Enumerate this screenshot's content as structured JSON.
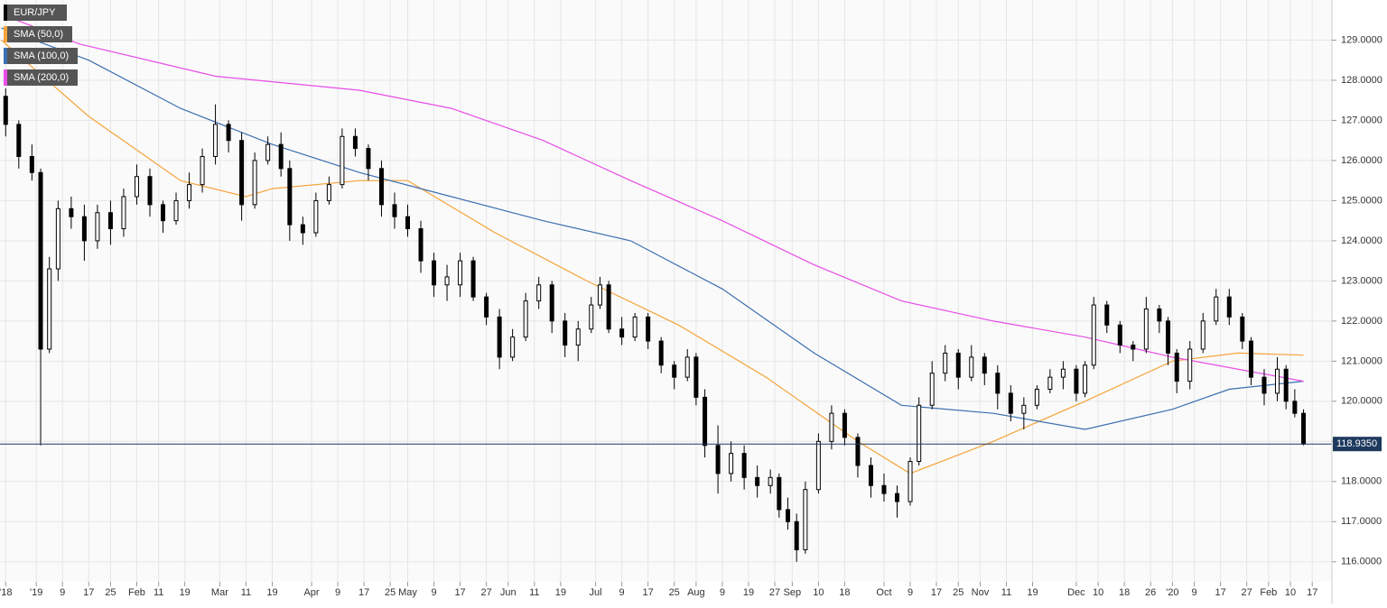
{
  "chart_data": {
    "type": "candlestick",
    "symbol": "EUR/JPY",
    "symbol_color": "#000000",
    "up_color": "#ffffff",
    "down_color": "#000000",
    "xlim": [
      -8.3,
      296.5
    ],
    "xticks": [
      {
        "value": -7,
        "label": "'18"
      },
      {
        "value": 0,
        "label": "'19"
      },
      {
        "value": 6,
        "label": "9"
      },
      {
        "value": 12,
        "label": "17"
      },
      {
        "value": 17,
        "label": "25"
      },
      {
        "value": 23,
        "label": "Feb"
      },
      {
        "value": 28,
        "label": "11"
      },
      {
        "value": 34,
        "label": "19"
      },
      {
        "value": 42,
        "label": "Mar"
      },
      {
        "value": 48,
        "label": "11"
      },
      {
        "value": 54,
        "label": "19"
      },
      {
        "value": 63,
        "label": "Apr"
      },
      {
        "value": 69,
        "label": "9"
      },
      {
        "value": 75,
        "label": "17"
      },
      {
        "value": 81,
        "label": "25"
      },
      {
        "value": 85,
        "label": "May"
      },
      {
        "value": 91,
        "label": "9"
      },
      {
        "value": 97,
        "label": "17"
      },
      {
        "value": 103,
        "label": "27"
      },
      {
        "value": 108,
        "label": "Jun"
      },
      {
        "value": 114,
        "label": "11"
      },
      {
        "value": 120,
        "label": "19"
      },
      {
        "value": 128,
        "label": "Jul"
      },
      {
        "value": 134,
        "label": "9"
      },
      {
        "value": 140,
        "label": "17"
      },
      {
        "value": 146,
        "label": "25"
      },
      {
        "value": 151,
        "label": "Aug"
      },
      {
        "value": 157,
        "label": "9"
      },
      {
        "value": 163,
        "label": "19"
      },
      {
        "value": 169,
        "label": "27"
      },
      {
        "value": 173,
        "label": "Sep"
      },
      {
        "value": 179,
        "label": "10"
      },
      {
        "value": 185,
        "label": "18"
      },
      {
        "value": 194,
        "label": "Oct"
      },
      {
        "value": 200,
        "label": "9"
      },
      {
        "value": 206,
        "label": "17"
      },
      {
        "value": 211,
        "label": "25"
      },
      {
        "value": 216,
        "label": "Nov"
      },
      {
        "value": 222,
        "label": "11"
      },
      {
        "value": 228,
        "label": "19"
      },
      {
        "value": 238,
        "label": "Dec"
      },
      {
        "value": 243,
        "label": "10"
      },
      {
        "value": 249,
        "label": "18"
      },
      {
        "value": 255,
        "label": "26"
      },
      {
        "value": 260,
        "label": "'20"
      },
      {
        "value": 265,
        "label": "9"
      },
      {
        "value": 271,
        "label": "17"
      },
      {
        "value": 277,
        "label": "27"
      },
      {
        "value": 282,
        "label": "Feb"
      },
      {
        "value": 287,
        "label": "10"
      },
      {
        "value": 292,
        "label": "17"
      }
    ],
    "ylim": [
      115.5,
      130.0
    ],
    "yticks": [
      {
        "value": 116,
        "label": "116.0000"
      },
      {
        "value": 117,
        "label": "117.0000"
      },
      {
        "value": 118,
        "label": "118.0000"
      },
      {
        "value": 119,
        "label": "119.0000"
      },
      {
        "value": 120,
        "label": "120.0000"
      },
      {
        "value": 121,
        "label": "121.0000"
      },
      {
        "value": 122,
        "label": "122.0000"
      },
      {
        "value": 123,
        "label": "123.0000"
      },
      {
        "value": 124,
        "label": "124.0000"
      },
      {
        "value": 125,
        "label": "125.0000"
      },
      {
        "value": 126,
        "label": "126.0000"
      },
      {
        "value": 127,
        "label": "127.0000"
      },
      {
        "value": 128,
        "label": "128.0000"
      },
      {
        "value": 129,
        "label": "129.0000"
      }
    ],
    "grid": true,
    "last_price": {
      "value": 118.935,
      "label": "118.9350"
    },
    "candles": [
      {
        "x": -7,
        "open": 127.6,
        "high": 127.8,
        "low": 126.6,
        "close": 126.9
      },
      {
        "x": -4,
        "open": 126.9,
        "high": 127.0,
        "low": 125.8,
        "close": 126.1
      },
      {
        "x": -1,
        "open": 126.1,
        "high": 126.4,
        "low": 125.5,
        "close": 125.7
      },
      {
        "x": 1,
        "open": 125.7,
        "high": 125.8,
        "low": 118.9,
        "close": 121.3
      },
      {
        "x": 3,
        "open": 121.3,
        "high": 123.6,
        "low": 121.2,
        "close": 123.3
      },
      {
        "x": 5,
        "open": 123.3,
        "high": 125.0,
        "low": 123.0,
        "close": 124.8
      },
      {
        "x": 8,
        "open": 124.8,
        "high": 125.1,
        "low": 124.3,
        "close": 124.6
      },
      {
        "x": 11,
        "open": 124.6,
        "high": 124.9,
        "low": 123.5,
        "close": 124.0
      },
      {
        "x": 14,
        "open": 124.0,
        "high": 124.9,
        "low": 123.8,
        "close": 124.7
      },
      {
        "x": 17,
        "open": 124.7,
        "high": 125.0,
        "low": 123.9,
        "close": 124.3
      },
      {
        "x": 20,
        "open": 124.3,
        "high": 125.3,
        "low": 124.1,
        "close": 125.1
      },
      {
        "x": 23,
        "open": 125.1,
        "high": 125.9,
        "low": 124.9,
        "close": 125.6
      },
      {
        "x": 26,
        "open": 125.6,
        "high": 125.8,
        "low": 124.6,
        "close": 124.9
      },
      {
        "x": 29,
        "open": 124.9,
        "high": 125.0,
        "low": 124.2,
        "close": 124.5
      },
      {
        "x": 32,
        "open": 124.5,
        "high": 125.2,
        "low": 124.4,
        "close": 125.0
      },
      {
        "x": 35,
        "open": 125.0,
        "high": 125.7,
        "low": 124.8,
        "close": 125.4
      },
      {
        "x": 38,
        "open": 125.4,
        "high": 126.3,
        "low": 125.2,
        "close": 126.1
      },
      {
        "x": 41,
        "open": 126.1,
        "high": 127.4,
        "low": 125.9,
        "close": 126.9
      },
      {
        "x": 44,
        "open": 126.9,
        "high": 127.0,
        "low": 126.2,
        "close": 126.5
      },
      {
        "x": 47,
        "open": 126.5,
        "high": 126.7,
        "low": 124.5,
        "close": 124.9
      },
      {
        "x": 50,
        "open": 124.9,
        "high": 126.2,
        "low": 124.8,
        "close": 126.0
      },
      {
        "x": 53,
        "open": 126.0,
        "high": 126.6,
        "low": 125.9,
        "close": 126.4
      },
      {
        "x": 56,
        "open": 126.4,
        "high": 126.7,
        "low": 125.6,
        "close": 125.8
      },
      {
        "x": 58,
        "open": 125.8,
        "high": 126.0,
        "low": 124.0,
        "close": 124.4
      },
      {
        "x": 61,
        "open": 124.4,
        "high": 124.6,
        "low": 123.9,
        "close": 124.2
      },
      {
        "x": 64,
        "open": 124.2,
        "high": 125.2,
        "low": 124.1,
        "close": 125.0
      },
      {
        "x": 67,
        "open": 125.0,
        "high": 125.6,
        "low": 124.9,
        "close": 125.4
      },
      {
        "x": 70,
        "open": 125.4,
        "high": 126.8,
        "low": 125.3,
        "close": 126.6
      },
      {
        "x": 73,
        "open": 126.6,
        "high": 126.8,
        "low": 126.1,
        "close": 126.3
      },
      {
        "x": 76,
        "open": 126.3,
        "high": 126.4,
        "low": 125.5,
        "close": 125.8
      },
      {
        "x": 79,
        "open": 125.8,
        "high": 126.0,
        "low": 124.6,
        "close": 124.9
      },
      {
        "x": 82,
        "open": 124.9,
        "high": 125.2,
        "low": 124.3,
        "close": 124.6
      },
      {
        "x": 85,
        "open": 124.6,
        "high": 124.9,
        "low": 124.1,
        "close": 124.3
      },
      {
        "x": 88,
        "open": 124.3,
        "high": 124.5,
        "low": 123.2,
        "close": 123.5
      },
      {
        "x": 91,
        "open": 123.5,
        "high": 123.7,
        "low": 122.6,
        "close": 122.9
      },
      {
        "x": 94,
        "open": 122.9,
        "high": 123.4,
        "low": 122.5,
        "close": 123.1
      },
      {
        "x": 97,
        "open": 122.9,
        "high": 123.7,
        "low": 122.6,
        "close": 123.5
      },
      {
        "x": 100,
        "open": 123.5,
        "high": 123.6,
        "low": 122.5,
        "close": 122.6
      },
      {
        "x": 103,
        "open": 122.6,
        "high": 122.7,
        "low": 121.9,
        "close": 122.1
      },
      {
        "x": 106,
        "open": 122.1,
        "high": 122.3,
        "low": 120.8,
        "close": 121.1
      },
      {
        "x": 109,
        "open": 121.1,
        "high": 121.8,
        "low": 121.0,
        "close": 121.6
      },
      {
        "x": 112,
        "open": 121.6,
        "high": 122.7,
        "low": 121.5,
        "close": 122.5
      },
      {
        "x": 115,
        "open": 122.5,
        "high": 123.1,
        "low": 122.3,
        "close": 122.9
      },
      {
        "x": 118,
        "open": 122.9,
        "high": 123.0,
        "low": 121.7,
        "close": 122.0
      },
      {
        "x": 121,
        "open": 122.0,
        "high": 122.2,
        "low": 121.1,
        "close": 121.4
      },
      {
        "x": 124,
        "open": 121.4,
        "high": 122.0,
        "low": 121.0,
        "close": 121.8
      },
      {
        "x": 127,
        "open": 121.8,
        "high": 122.6,
        "low": 121.7,
        "close": 122.4
      },
      {
        "x": 129,
        "open": 122.4,
        "high": 123.1,
        "low": 122.3,
        "close": 122.9
      },
      {
        "x": 131,
        "open": 122.9,
        "high": 123.0,
        "low": 121.7,
        "close": 121.8
      },
      {
        "x": 134,
        "open": 121.8,
        "high": 122.1,
        "low": 121.4,
        "close": 121.6
      },
      {
        "x": 137,
        "open": 121.6,
        "high": 122.2,
        "low": 121.5,
        "close": 122.1
      },
      {
        "x": 140,
        "open": 122.1,
        "high": 122.2,
        "low": 121.3,
        "close": 121.5
      },
      {
        "x": 143,
        "open": 121.5,
        "high": 121.6,
        "low": 120.7,
        "close": 120.9
      },
      {
        "x": 146,
        "open": 120.9,
        "high": 121.0,
        "low": 120.3,
        "close": 120.6
      },
      {
        "x": 149,
        "open": 120.6,
        "high": 121.3,
        "low": 120.5,
        "close": 121.1
      },
      {
        "x": 151,
        "open": 121.1,
        "high": 121.2,
        "low": 119.9,
        "close": 120.1
      },
      {
        "x": 153,
        "open": 120.1,
        "high": 120.3,
        "low": 118.6,
        "close": 118.9
      },
      {
        "x": 156,
        "open": 118.9,
        "high": 119.4,
        "low": 117.7,
        "close": 118.2
      },
      {
        "x": 159,
        "open": 118.2,
        "high": 119.0,
        "low": 118.0,
        "close": 118.7
      },
      {
        "x": 162,
        "open": 118.7,
        "high": 118.9,
        "low": 117.8,
        "close": 118.1
      },
      {
        "x": 165,
        "open": 118.1,
        "high": 118.4,
        "low": 117.6,
        "close": 117.9
      },
      {
        "x": 168,
        "open": 117.9,
        "high": 118.3,
        "low": 117.7,
        "close": 118.1
      },
      {
        "x": 170,
        "open": 118.1,
        "high": 118.2,
        "low": 117.1,
        "close": 117.3
      },
      {
        "x": 172,
        "open": 117.3,
        "high": 117.6,
        "low": 116.8,
        "close": 117.0
      },
      {
        "x": 174,
        "open": 117.0,
        "high": 117.2,
        "low": 116.0,
        "close": 116.3
      },
      {
        "x": 176,
        "open": 116.3,
        "high": 118.0,
        "low": 116.2,
        "close": 117.8
      },
      {
        "x": 179,
        "open": 117.8,
        "high": 119.2,
        "low": 117.7,
        "close": 119.0
      },
      {
        "x": 182,
        "open": 119.0,
        "high": 119.9,
        "low": 118.8,
        "close": 119.7
      },
      {
        "x": 185,
        "open": 119.7,
        "high": 119.8,
        "low": 118.9,
        "close": 119.1
      },
      {
        "x": 188,
        "open": 119.1,
        "high": 119.2,
        "low": 118.1,
        "close": 118.4
      },
      {
        "x": 191,
        "open": 118.4,
        "high": 118.6,
        "low": 117.6,
        "close": 117.9
      },
      {
        "x": 194,
        "open": 117.9,
        "high": 118.2,
        "low": 117.5,
        "close": 117.7
      },
      {
        "x": 197,
        "open": 117.7,
        "high": 117.9,
        "low": 117.1,
        "close": 117.5
      },
      {
        "x": 200,
        "open": 117.5,
        "high": 118.6,
        "low": 117.4,
        "close": 118.5
      },
      {
        "x": 202,
        "open": 118.5,
        "high": 120.1,
        "low": 118.4,
        "close": 119.9
      },
      {
        "x": 205,
        "open": 119.9,
        "high": 121.0,
        "low": 119.8,
        "close": 120.7
      },
      {
        "x": 208,
        "open": 120.7,
        "high": 121.4,
        "low": 120.5,
        "close": 121.2
      },
      {
        "x": 211,
        "open": 121.2,
        "high": 121.3,
        "low": 120.3,
        "close": 120.6
      },
      {
        "x": 214,
        "open": 120.6,
        "high": 121.4,
        "low": 120.5,
        "close": 121.1
      },
      {
        "x": 217,
        "open": 121.1,
        "high": 121.2,
        "low": 120.4,
        "close": 120.7
      },
      {
        "x": 220,
        "open": 120.7,
        "high": 120.9,
        "low": 119.8,
        "close": 120.2
      },
      {
        "x": 223,
        "open": 120.2,
        "high": 120.4,
        "low": 119.5,
        "close": 119.7
      },
      {
        "x": 226,
        "open": 119.7,
        "high": 120.1,
        "low": 119.3,
        "close": 119.9
      },
      {
        "x": 229,
        "open": 119.9,
        "high": 120.4,
        "low": 119.8,
        "close": 120.3
      },
      {
        "x": 232,
        "open": 120.3,
        "high": 120.8,
        "low": 120.2,
        "close": 120.6
      },
      {
        "x": 235,
        "open": 120.6,
        "high": 121.0,
        "low": 120.3,
        "close": 120.8
      },
      {
        "x": 238,
        "open": 120.8,
        "high": 120.9,
        "low": 120.0,
        "close": 120.2
      },
      {
        "x": 240,
        "open": 120.2,
        "high": 121.0,
        "low": 120.1,
        "close": 120.9
      },
      {
        "x": 242,
        "open": 120.9,
        "high": 122.6,
        "low": 120.8,
        "close": 122.4
      },
      {
        "x": 245,
        "open": 122.4,
        "high": 122.5,
        "low": 121.7,
        "close": 121.9
      },
      {
        "x": 248,
        "open": 121.9,
        "high": 122.0,
        "low": 121.2,
        "close": 121.4
      },
      {
        "x": 251,
        "open": 121.4,
        "high": 121.5,
        "low": 121.0,
        "close": 121.3
      },
      {
        "x": 254,
        "open": 121.3,
        "high": 122.6,
        "low": 121.2,
        "close": 122.3
      },
      {
        "x": 257,
        "open": 122.3,
        "high": 122.4,
        "low": 121.7,
        "close": 122.0
      },
      {
        "x": 259,
        "open": 122.0,
        "high": 122.1,
        "low": 120.9,
        "close": 121.2
      },
      {
        "x": 261,
        "open": 121.2,
        "high": 121.3,
        "low": 120.2,
        "close": 120.5
      },
      {
        "x": 264,
        "open": 120.5,
        "high": 121.5,
        "low": 120.3,
        "close": 121.3
      },
      {
        "x": 267,
        "open": 121.3,
        "high": 122.2,
        "low": 121.2,
        "close": 122.0
      },
      {
        "x": 270,
        "open": 122.0,
        "high": 122.8,
        "low": 121.9,
        "close": 122.6
      },
      {
        "x": 273,
        "open": 122.6,
        "high": 122.8,
        "low": 121.9,
        "close": 122.1
      },
      {
        "x": 276,
        "open": 122.1,
        "high": 122.2,
        "low": 121.3,
        "close": 121.5
      },
      {
        "x": 278,
        "open": 121.5,
        "high": 121.6,
        "low": 120.4,
        "close": 120.6
      },
      {
        "x": 281,
        "open": 120.6,
        "high": 120.8,
        "low": 119.9,
        "close": 120.2
      },
      {
        "x": 284,
        "open": 120.2,
        "high": 121.1,
        "low": 120.0,
        "close": 120.8
      },
      {
        "x": 286,
        "open": 120.8,
        "high": 120.9,
        "low": 119.8,
        "close": 120.0
      },
      {
        "x": 288,
        "open": 120.0,
        "high": 120.3,
        "low": 119.6,
        "close": 119.7
      },
      {
        "x": 290,
        "open": 119.7,
        "high": 119.8,
        "low": 118.9,
        "close": 118.935
      }
    ],
    "series": [
      {
        "name": "SMA (50,0)",
        "color": "#f5a33a",
        "x": [
          -8,
          12,
          33,
          48,
          54,
          74,
          85,
          105,
          126,
          147,
          167,
          188,
          200,
          219,
          240,
          260,
          275,
          290
        ],
        "values": [
          129.0,
          127.1,
          125.5,
          125.1,
          125.3,
          125.5,
          125.5,
          124.2,
          123.0,
          121.9,
          120.6,
          119.0,
          118.2,
          119.0,
          120.0,
          121.0,
          121.2,
          121.15
        ]
      },
      {
        "name": "SMA (100,0)",
        "color": "#3b6fb0",
        "x": [
          -8,
          12,
          33,
          54,
          74,
          95,
          116,
          136,
          157,
          178,
          198,
          219,
          240,
          260,
          273,
          290
        ],
        "values": [
          129.3,
          128.5,
          127.3,
          126.4,
          125.7,
          125.1,
          124.5,
          124.0,
          122.8,
          121.2,
          119.9,
          119.7,
          119.3,
          119.8,
          120.3,
          120.5
        ]
      },
      {
        "name": "SMA (200,0)",
        "color": "#e84de8",
        "x": [
          -7,
          10,
          41,
          74,
          95,
          116,
          136,
          157,
          178,
          198,
          219,
          240,
          260,
          290
        ],
        "values": [
          129.6,
          128.9,
          128.1,
          127.75,
          127.3,
          126.5,
          125.5,
          124.5,
          123.4,
          122.5,
          122.0,
          121.6,
          121.1,
          120.5
        ]
      }
    ]
  }
}
